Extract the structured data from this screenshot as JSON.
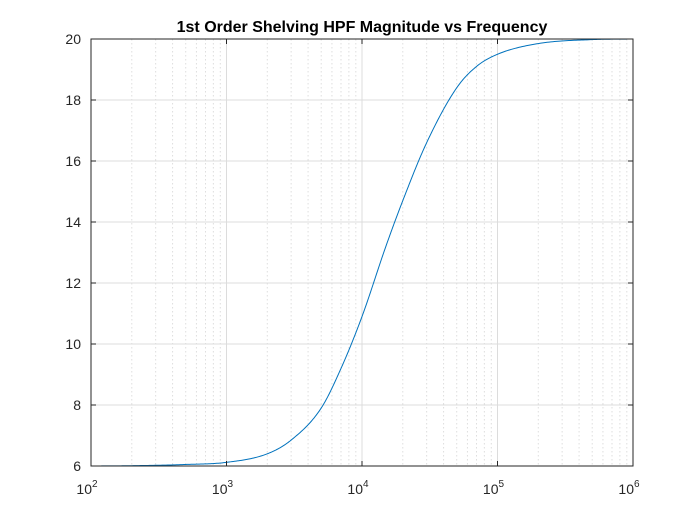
{
  "chart_data": {
    "type": "line",
    "title": "1st Order Shelving HPF Magnitude vs Frequency",
    "xlabel": "",
    "ylabel": "",
    "xscale": "log",
    "xlim": [
      100,
      1000000
    ],
    "ylim": [
      6,
      20
    ],
    "grid": true,
    "minor_grid": true,
    "series_color": "#0072bd",
    "x_ticks": [
      {
        "base": "10",
        "exp": "2",
        "value": 100
      },
      {
        "base": "10",
        "exp": "3",
        "value": 1000
      },
      {
        "base": "10",
        "exp": "4",
        "value": 10000
      },
      {
        "base": "10",
        "exp": "5",
        "value": 100000
      },
      {
        "base": "10",
        "exp": "6",
        "value": 1000000
      }
    ],
    "y_ticks": [
      "6",
      "8",
      "10",
      "12",
      "14",
      "16",
      "18",
      "20"
    ],
    "series": [
      {
        "x": [
          100,
          200,
          500,
          1000,
          2000,
          3000,
          5000,
          7000,
          10000,
          15000,
          20000,
          30000,
          50000,
          70000,
          100000,
          200000,
          500000,
          1000000
        ],
        "y": [
          6.0,
          6.01,
          6.05,
          6.12,
          6.4,
          6.85,
          7.9,
          9.2,
          10.9,
          13.2,
          14.7,
          16.6,
          18.4,
          19.1,
          19.5,
          19.85,
          19.98,
          20.0
        ]
      }
    ]
  }
}
